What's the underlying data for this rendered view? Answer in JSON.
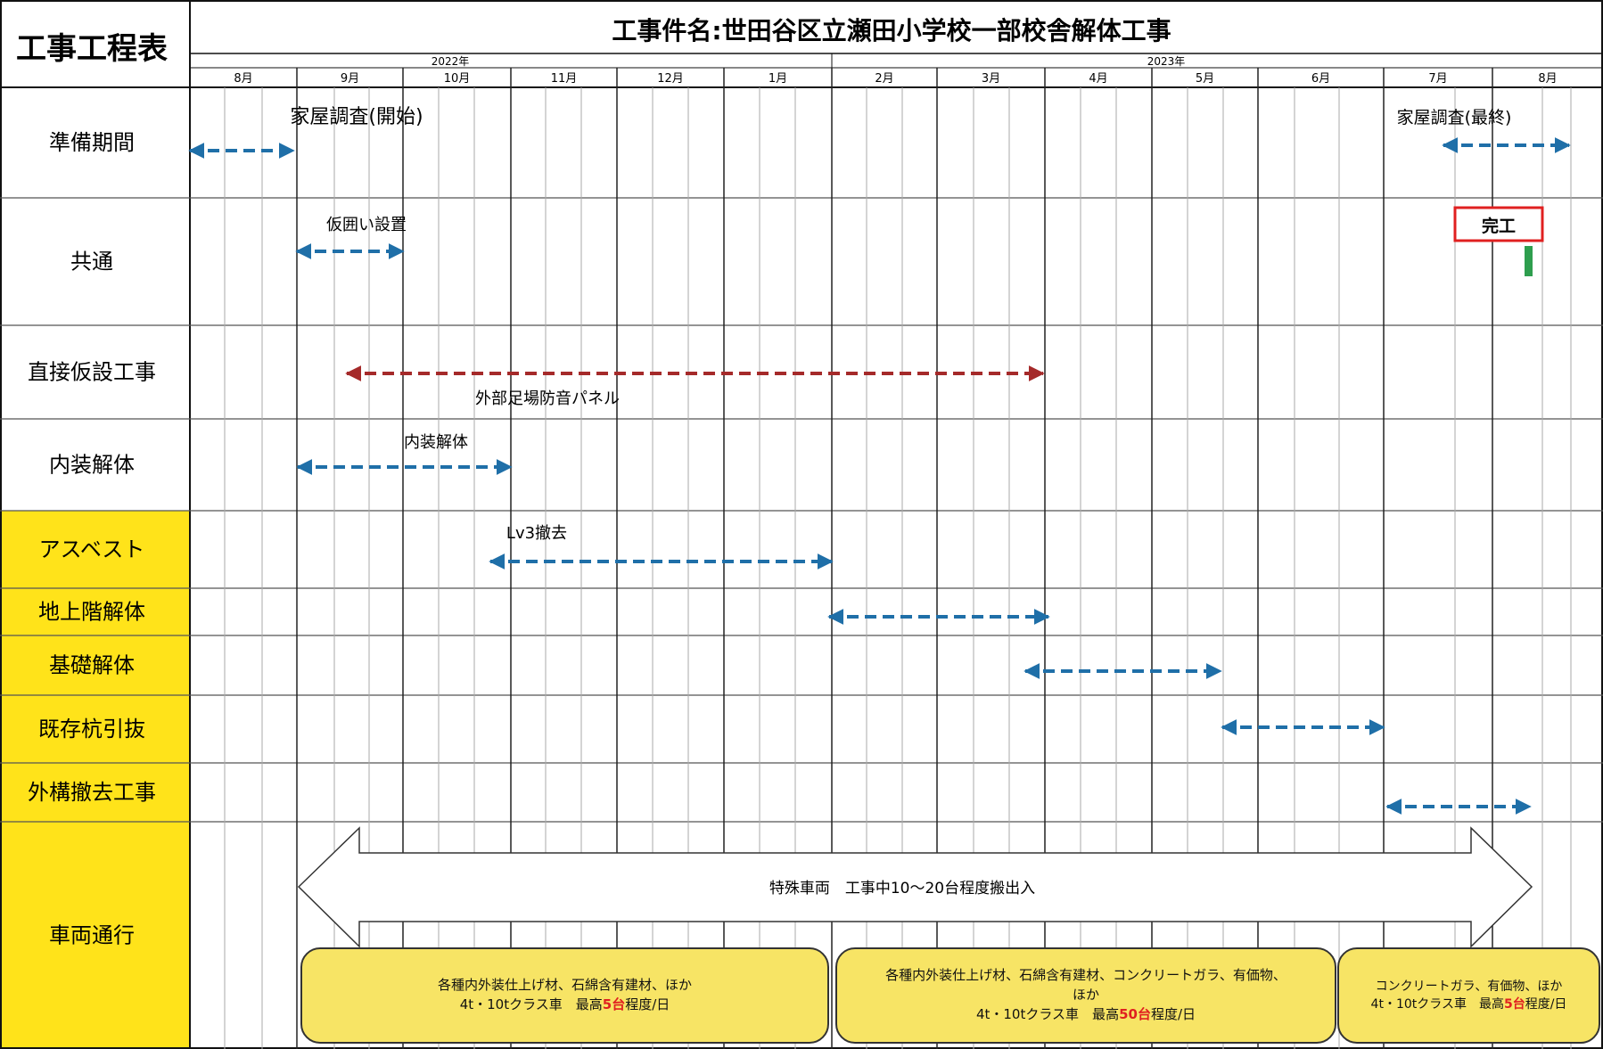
{
  "header": {
    "doc_title": "工事工程表",
    "project_title": "工事件名:世田谷区立瀬田小学校一部校舎解体工事",
    "years": [
      "2022年",
      "2023年"
    ],
    "months": [
      "8月",
      "9月",
      "10月",
      "11月",
      "12月",
      "1月",
      "2月",
      "3月",
      "4月",
      "5月",
      "6月",
      "7月",
      "8月"
    ]
  },
  "rows": [
    {
      "label": "準備期間",
      "highlight": false
    },
    {
      "label": "共通",
      "highlight": false
    },
    {
      "label": "直接仮設工事",
      "highlight": false
    },
    {
      "label": "内装解体",
      "highlight": false
    },
    {
      "label": "アスベスト",
      "highlight": true
    },
    {
      "label": "地上階解体",
      "highlight": true
    },
    {
      "label": "基礎解体",
      "highlight": true
    },
    {
      "label": "既存杭引抜",
      "highlight": true
    },
    {
      "label": "外構撤去工事",
      "highlight": true
    },
    {
      "label": "車両通行",
      "highlight": true
    }
  ],
  "labels": {
    "house_survey_start": "家屋調査(開始)",
    "house_survey_final": "家屋調査(最終)",
    "fence_install": "仮囲い設置",
    "completion": "完工",
    "scaffold_panel": "外部足場防音パネル",
    "interior_demolition": "内装解体",
    "lv3_removal": "Lv3撤去",
    "special_vehicles": "特殊車両　工事中10～20台程度搬出入"
  },
  "vehicle_boxes": [
    {
      "line1": "各種内外装仕上げ材、石綿含有建材、ほか",
      "line2": "",
      "line3_pre": "4t・10tクラス車　最高",
      "line3_num": "5台",
      "line3_post": "程度/日"
    },
    {
      "line1": "各種内外装仕上げ材、石綿含有建材、コンクリートガラ、有価物、",
      "line2": "ほか",
      "line3_pre": "4t・10tクラス車　最高",
      "line3_num": "50台",
      "line3_post": "程度/日"
    },
    {
      "line1": "コンクリートガラ、有価物、ほか",
      "line2": "",
      "line3_pre": "4t・10tクラス車　最高",
      "line3_num": "5台",
      "line3_post": "程度/日"
    }
  ],
  "colors": {
    "blue_arrow": "#1f6fa8",
    "red_arrow": "#a52a2a",
    "yellow_fill": "#ffe31a",
    "box_fill": "#f7e465",
    "completion_border": "#e02020",
    "completion_bar": "#2e9e4e"
  }
}
